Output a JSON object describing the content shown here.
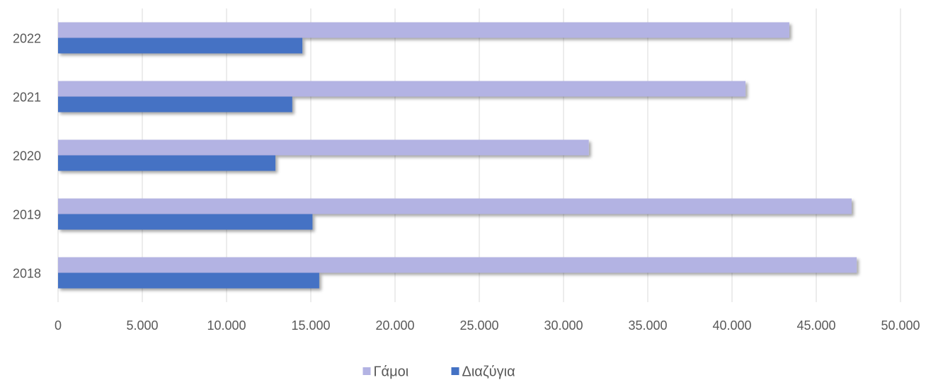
{
  "chart_data": {
    "type": "hbar",
    "categories": [
      "2018",
      "2019",
      "2020",
      "2021",
      "2022"
    ],
    "series": [
      {
        "name": "Γάμοι",
        "color": "#b3b3e3",
        "values": [
          47400,
          47100,
          31500,
          40800,
          43400
        ]
      },
      {
        "name": "Διαζύγια",
        "color": "#4472c4",
        "values": [
          15500,
          15100,
          12900,
          13900,
          14500
        ]
      }
    ],
    "xlim": [
      0,
      50000
    ],
    "xticks": [
      0,
      {
        "value": 5000,
        "label": "5.000"
      },
      {
        "value": 10000,
        "label": "10.000"
      },
      {
        "value": 15000,
        "label": "15.000"
      },
      {
        "value": 20000,
        "label": "20.000"
      },
      {
        "value": 25000,
        "label": "25.000"
      },
      {
        "value": 30000,
        "label": "30.000"
      },
      {
        "value": 35000,
        "label": "35.000"
      },
      {
        "value": 40000,
        "label": "40.000"
      },
      {
        "value": 45000,
        "label": "45.000"
      },
      {
        "value": 50000,
        "label": "50.000"
      }
    ],
    "grid": true,
    "legend": "bottom"
  }
}
